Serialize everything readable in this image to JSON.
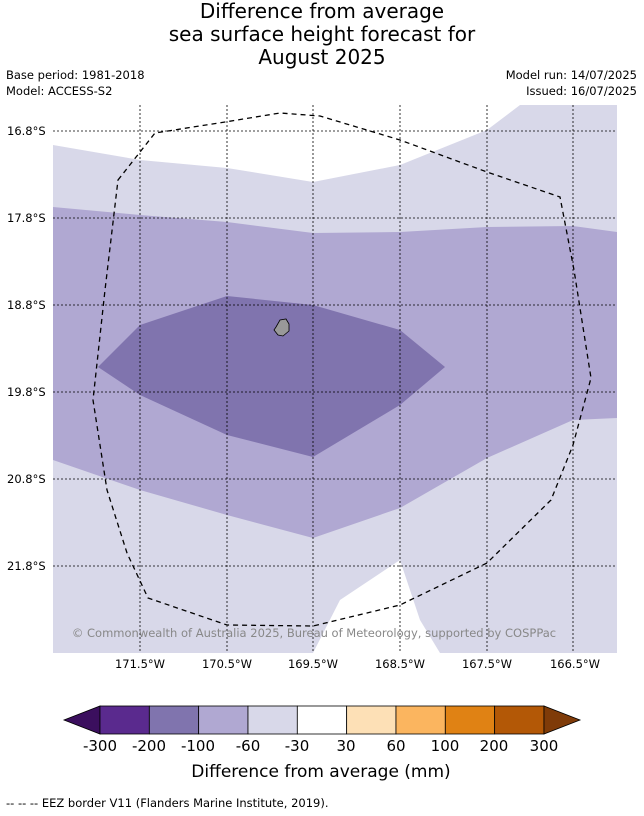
{
  "title": {
    "line1": "Difference from average",
    "line2": "sea surface height forecast for",
    "line3": "August 2025"
  },
  "meta": {
    "base_period": "Base period: 1981-2018",
    "model": "Model: ACCESS-S2",
    "model_run": "Model run: 14/07/2025",
    "issued": "Issued: 16/07/2025"
  },
  "map": {
    "lat_labels": [
      "16.8°S",
      "17.8°S",
      "18.8°S",
      "19.8°S",
      "20.8°S",
      "21.8°S"
    ],
    "lon_labels": [
      "171.5°W",
      "170.5°W",
      "169.5°W",
      "168.5°W",
      "167.5°W",
      "166.5°W"
    ],
    "copyright": "© Commonwealth of Australia 2025, Bureau of Meteorology, supported by COSPPac",
    "colors": {
      "band_-30_-60": "#d8d8e9",
      "band_-60_-100": "#b0a8d2",
      "band_-100_-200": "#8074ae",
      "land": "#999999",
      "eez_border": "#000000"
    }
  },
  "colorbar": {
    "ticks": [
      "-300",
      "-200",
      "-100",
      "-60",
      "-30",
      "30",
      "60",
      "100",
      "200",
      "300"
    ],
    "colors": [
      "#3b0f5e",
      "#5a2a8e",
      "#8074ae",
      "#b0a8d2",
      "#d8d8e9",
      "#ffffff",
      "#fde0b6",
      "#fbb55f",
      "#e08214",
      "#b35806",
      "#7f3b08"
    ],
    "label": "Difference from average (mm)"
  },
  "footnote": "--  --  -- EEZ border V11 (Flanders Marine Institute, 2019)."
}
